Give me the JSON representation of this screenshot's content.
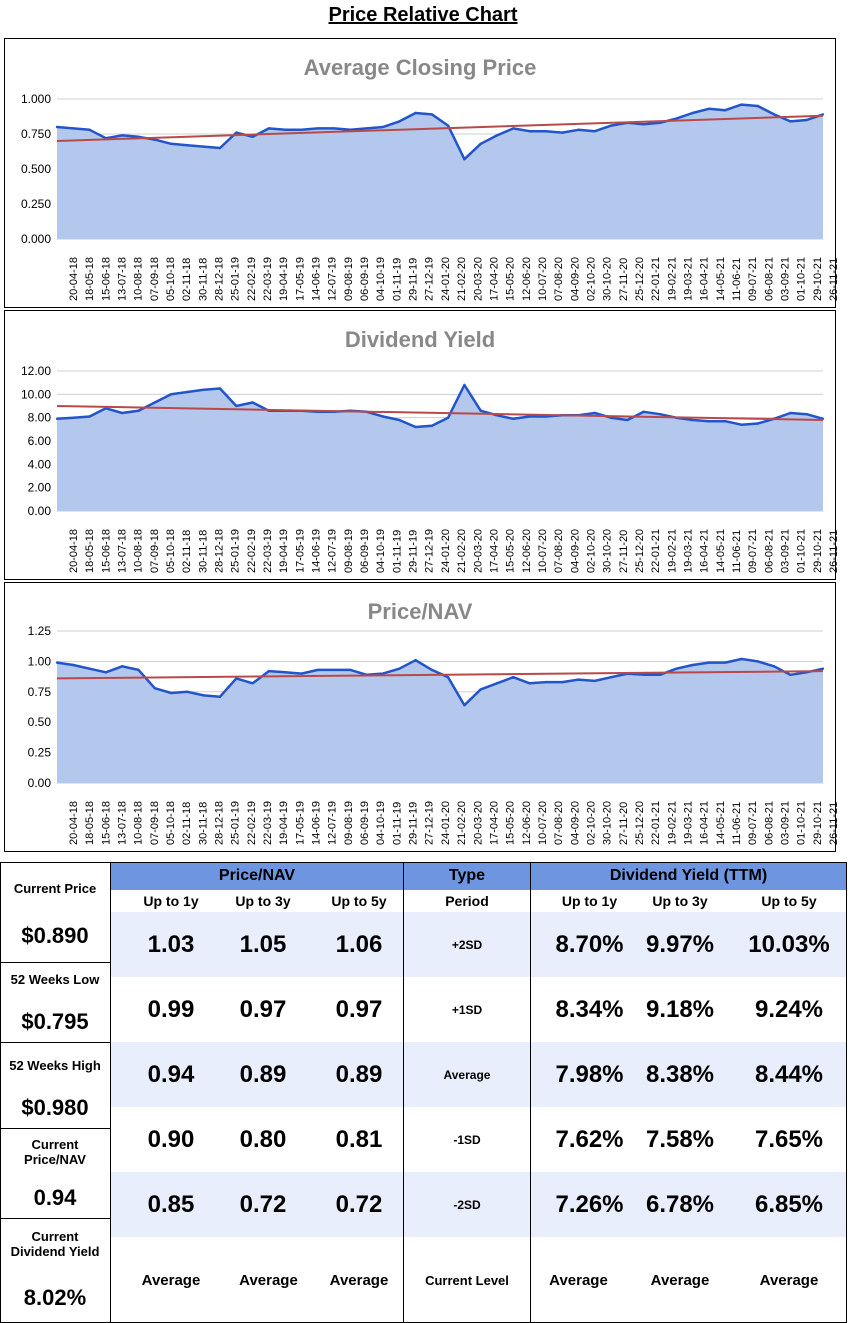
{
  "title": "Price Relative Chart",
  "colors": {
    "fill": "#b4c7ec",
    "line": "#2255cc",
    "trend": "#b84a4a",
    "header": "#6d95e0",
    "band": "#e8eefb"
  },
  "chart_data": [
    {
      "type": "area",
      "title": "Average Closing Price",
      "ylim": [
        0,
        1.0
      ],
      "yticks": [
        "0.000",
        "0.250",
        "0.500",
        "0.750",
        "1.000"
      ],
      "ytick_values": [
        0,
        0.25,
        0.5,
        0.75,
        1.0
      ],
      "x": [
        "20-04-18",
        "18-05-18",
        "15-06-18",
        "13-07-18",
        "10-08-18",
        "07-09-18",
        "05-10-18",
        "02-11-18",
        "30-11-18",
        "28-12-18",
        "25-01-19",
        "22-02-19",
        "22-03-19",
        "19-04-19",
        "17-05-19",
        "14-06-19",
        "12-07-19",
        "09-08-19",
        "06-09-19",
        "04-10-19",
        "01-11-19",
        "29-11-19",
        "27-12-19",
        "24-01-20",
        "21-02-20",
        "20-03-20",
        "17-04-20",
        "15-05-20",
        "12-06-20",
        "10-07-20",
        "07-08-20",
        "04-09-20",
        "02-10-20",
        "30-10-20",
        "27-11-20",
        "25-12-20",
        "22-01-21",
        "19-02-21",
        "19-03-21",
        "16-04-21",
        "14-05-21",
        "11-06-21",
        "09-07-21",
        "06-08-21",
        "03-09-21",
        "01-10-21",
        "29-10-21",
        "26-11-21"
      ],
      "values": [
        0.8,
        0.79,
        0.78,
        0.72,
        0.74,
        0.73,
        0.71,
        0.68,
        0.67,
        0.66,
        0.65,
        0.76,
        0.73,
        0.79,
        0.78,
        0.78,
        0.79,
        0.79,
        0.78,
        0.79,
        0.8,
        0.84,
        0.9,
        0.89,
        0.81,
        0.57,
        0.68,
        0.74,
        0.79,
        0.77,
        0.77,
        0.76,
        0.78,
        0.77,
        0.81,
        0.83,
        0.82,
        0.83,
        0.86,
        0.9,
        0.93,
        0.92,
        0.96,
        0.95,
        0.89,
        0.84,
        0.85,
        0.89
      ],
      "trend": [
        0.7,
        0.88
      ]
    },
    {
      "type": "area",
      "title": "Dividend Yield",
      "ylim": [
        0,
        12
      ],
      "yticks": [
        "0.00",
        "2.00",
        "4.00",
        "6.00",
        "8.00",
        "10.00",
        "12.00"
      ],
      "ytick_values": [
        0,
        2,
        4,
        6,
        8,
        10,
        12
      ],
      "x": [
        "20-04-18",
        "18-05-18",
        "15-06-18",
        "13-07-18",
        "10-08-18",
        "07-09-18",
        "05-10-18",
        "02-11-18",
        "30-11-18",
        "28-12-18",
        "25-01-19",
        "22-02-19",
        "22-03-19",
        "19-04-19",
        "17-05-19",
        "14-06-19",
        "12-07-19",
        "09-08-19",
        "06-09-19",
        "04-10-19",
        "01-11-19",
        "29-11-19",
        "27-12-19",
        "24-01-20",
        "21-02-20",
        "20-03-20",
        "17-04-20",
        "15-05-20",
        "12-06-20",
        "10-07-20",
        "07-08-20",
        "04-09-20",
        "02-10-20",
        "30-10-20",
        "27-11-20",
        "25-12-20",
        "22-01-21",
        "19-02-21",
        "19-03-21",
        "16-04-21",
        "14-05-21",
        "11-06-21",
        "09-07-21",
        "06-08-21",
        "03-09-21",
        "01-10-21",
        "29-10-21",
        "26-11-21"
      ],
      "values": [
        7.9,
        8.0,
        8.1,
        8.8,
        8.4,
        8.6,
        9.3,
        10.0,
        10.2,
        10.4,
        10.5,
        9.0,
        9.3,
        8.6,
        8.6,
        8.6,
        8.5,
        8.5,
        8.6,
        8.5,
        8.1,
        7.8,
        7.2,
        7.3,
        8.0,
        10.8,
        8.6,
        8.2,
        7.9,
        8.1,
        8.1,
        8.2,
        8.2,
        8.4,
        8.0,
        7.8,
        8.5,
        8.3,
        8.0,
        7.8,
        7.7,
        7.7,
        7.4,
        7.5,
        7.9,
        8.4,
        8.3,
        7.9
      ],
      "trend": [
        9.0,
        7.8
      ]
    },
    {
      "type": "area",
      "title": "Price/NAV",
      "ylim": [
        0,
        1.25
      ],
      "yticks": [
        "0.00",
        "0.25",
        "0.50",
        "0.75",
        "1.00",
        "1.25"
      ],
      "ytick_values": [
        0,
        0.25,
        0.5,
        0.75,
        1.0,
        1.25
      ],
      "x": [
        "20-04-18",
        "18-05-18",
        "15-06-18",
        "13-07-18",
        "10-08-18",
        "07-09-18",
        "05-10-18",
        "02-11-18",
        "30-11-18",
        "28-12-18",
        "25-01-19",
        "22-02-19",
        "22-03-19",
        "19-04-19",
        "17-05-19",
        "14-06-19",
        "12-07-19",
        "09-08-19",
        "06-09-19",
        "04-10-19",
        "01-11-19",
        "29-11-19",
        "27-12-19",
        "24-01-20",
        "21-02-20",
        "20-03-20",
        "17-04-20",
        "15-05-20",
        "12-06-20",
        "10-07-20",
        "07-08-20",
        "04-09-20",
        "02-10-20",
        "30-10-20",
        "27-11-20",
        "25-12-20",
        "22-01-21",
        "19-02-21",
        "19-03-21",
        "16-04-21",
        "14-05-21",
        "11-06-21",
        "09-07-21",
        "06-08-21",
        "03-09-21",
        "01-10-21",
        "29-10-21",
        "26-11-21"
      ],
      "values": [
        0.99,
        0.97,
        0.94,
        0.91,
        0.96,
        0.93,
        0.78,
        0.74,
        0.75,
        0.72,
        0.71,
        0.86,
        0.82,
        0.92,
        0.91,
        0.9,
        0.93,
        0.93,
        0.93,
        0.89,
        0.9,
        0.94,
        1.01,
        0.93,
        0.87,
        0.64,
        0.77,
        0.82,
        0.87,
        0.82,
        0.83,
        0.83,
        0.85,
        0.84,
        0.87,
        0.9,
        0.89,
        0.89,
        0.94,
        0.97,
        0.99,
        0.99,
        1.02,
        1.0,
        0.96,
        0.89,
        0.91,
        0.94
      ],
      "trend": [
        0.86,
        0.92
      ]
    }
  ],
  "summary": {
    "current_price": {
      "label": "Current Price",
      "value": "$0.890"
    },
    "low_52w": {
      "label": "52 Weeks Low",
      "value": "$0.795"
    },
    "high_52w": {
      "label": "52 Weeks High",
      "value": "$0.980"
    },
    "current_pnav": {
      "label": "Current Price/NAV",
      "value": "0.94"
    },
    "current_dy": {
      "label": "Current Dividend Yield",
      "value": "8.02%"
    }
  },
  "table": {
    "pnav_header": "Price/NAV",
    "type_header": "Type",
    "dy_header": "Dividend Yield (TTM)",
    "pnav_sub": [
      "Up to 1y",
      "Up to 3y",
      "Up to 5y"
    ],
    "type_sub": "Period",
    "dy_sub": [
      "Up to 1y",
      "Up to 3y",
      "Up to 5y"
    ],
    "rows": [
      {
        "type": "+2SD",
        "pnav": [
          "1.03",
          "1.05",
          "1.06"
        ],
        "dy": [
          "8.70%",
          "9.97%",
          "10.03%"
        ]
      },
      {
        "type": "+1SD",
        "pnav": [
          "0.99",
          "0.97",
          "0.97"
        ],
        "dy": [
          "8.34%",
          "9.18%",
          "9.24%"
        ]
      },
      {
        "type": "Average",
        "pnav": [
          "0.94",
          "0.89",
          "0.89"
        ],
        "dy": [
          "7.98%",
          "8.38%",
          "8.44%"
        ]
      },
      {
        "type": "-1SD",
        "pnav": [
          "0.90",
          "0.80",
          "0.81"
        ],
        "dy": [
          "7.62%",
          "7.58%",
          "7.65%"
        ]
      },
      {
        "type": "-2SD",
        "pnav": [
          "0.85",
          "0.72",
          "0.72"
        ],
        "dy": [
          "7.26%",
          "6.78%",
          "6.85%"
        ]
      }
    ],
    "footer": {
      "pnav": [
        "Average",
        "Average",
        "Average"
      ],
      "type": "Current Level",
      "dy": [
        "Average",
        "Average",
        "Average"
      ]
    }
  }
}
